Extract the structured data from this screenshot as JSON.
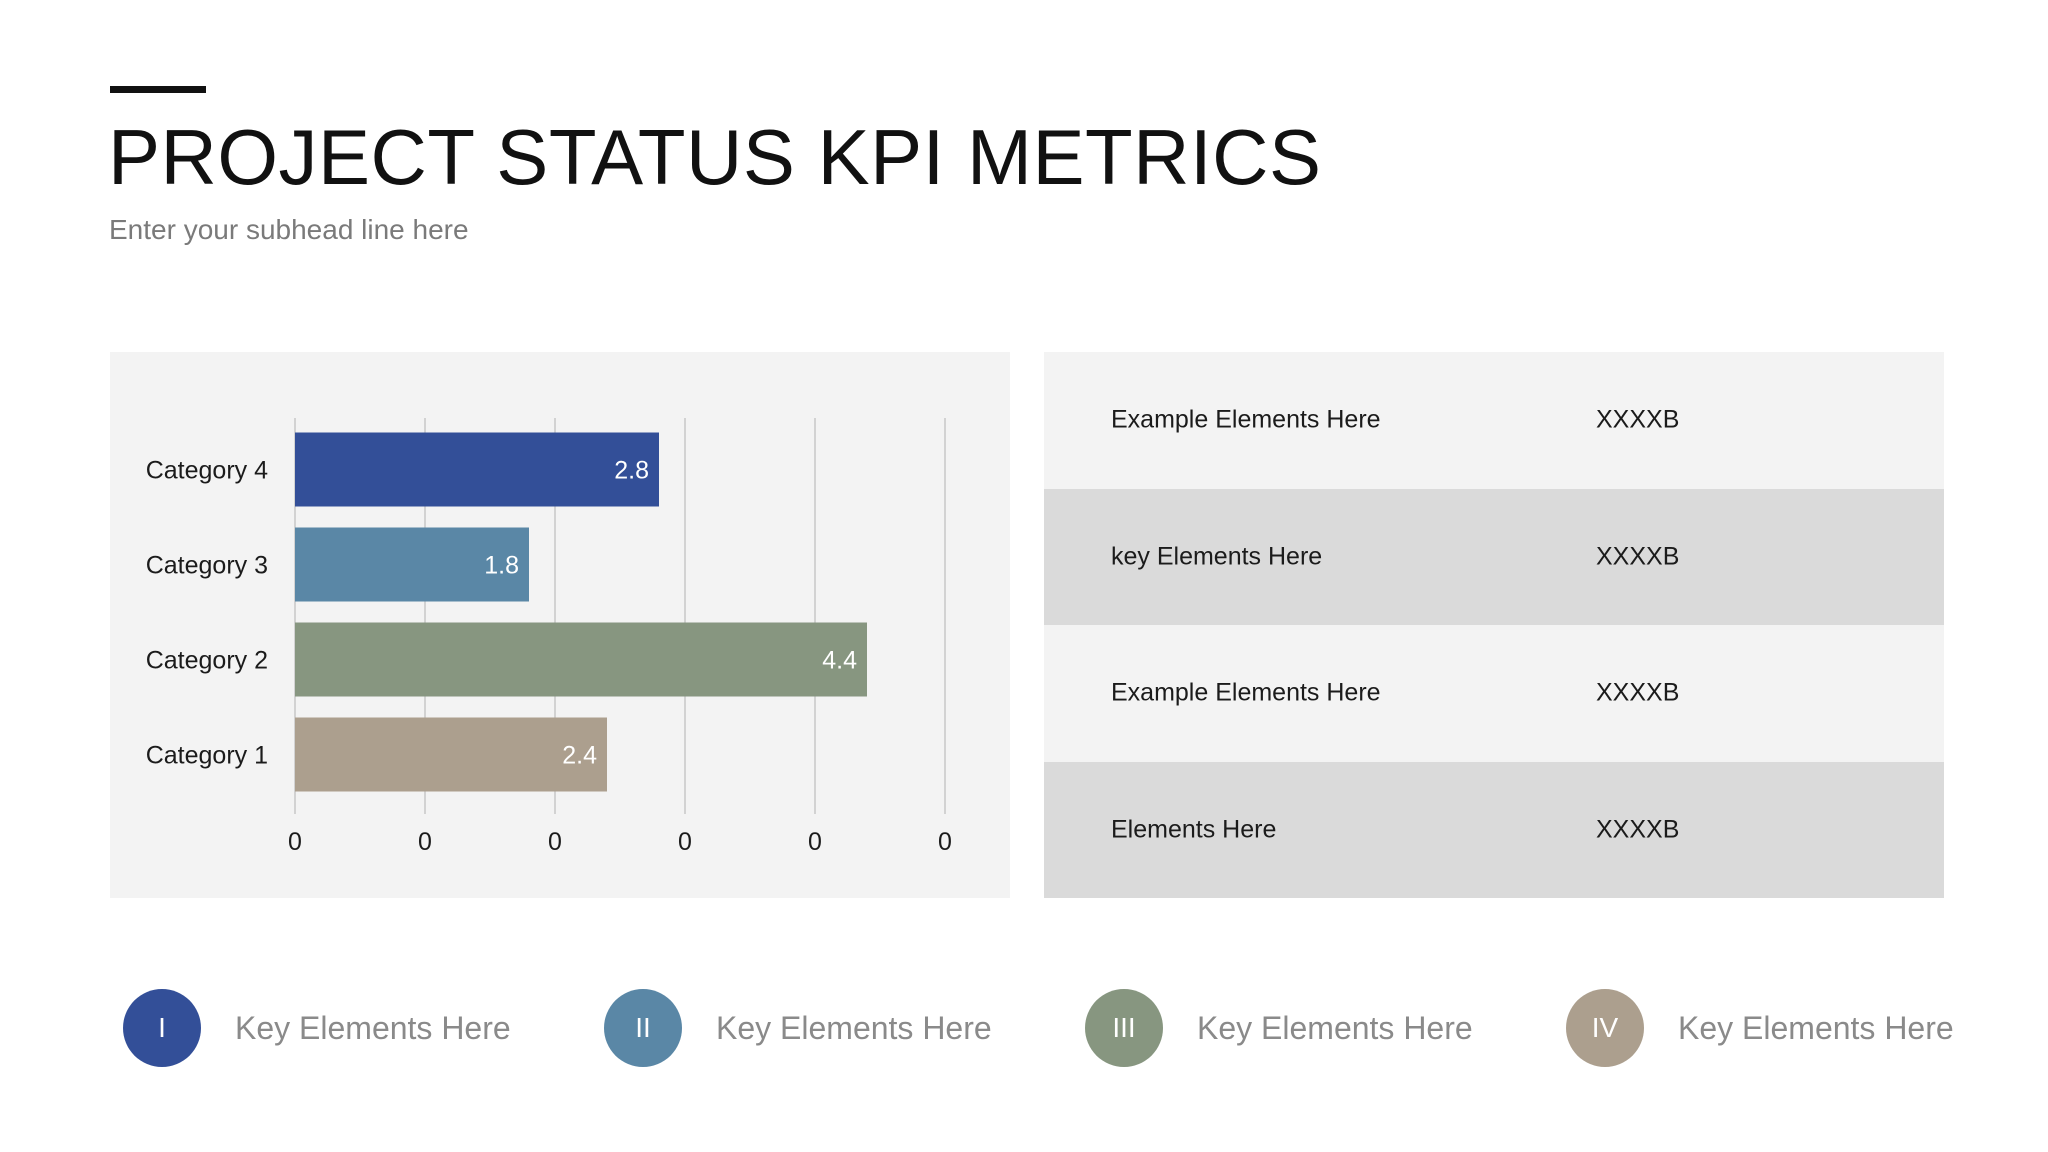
{
  "header": {
    "title": "PROJECT STATUS KPI METRICS",
    "subtitle": "Enter your subhead line here"
  },
  "chart_data": {
    "type": "bar",
    "orientation": "horizontal",
    "categories": [
      "Category 4",
      "Category 3",
      "Category 2",
      "Category 1"
    ],
    "values": [
      2.8,
      1.8,
      4.4,
      2.4
    ],
    "data_labels": [
      "2.8",
      "1.8",
      "4.4",
      "2.4"
    ],
    "colors": [
      "#334f98",
      "#5a87a6",
      "#879680",
      "#ac9f8e"
    ],
    "x_tick_labels": [
      "0",
      "0",
      "0",
      "0",
      "0",
      "0"
    ],
    "xlim": [
      0,
      5
    ],
    "grid": true,
    "title": "",
    "xlabel": "",
    "ylabel": ""
  },
  "table": {
    "rows": [
      {
        "label": "Example Elements Here",
        "value": "XXXXB",
        "bg": "#f3f3f3"
      },
      {
        "label": "key Elements Here",
        "value": "XXXXB",
        "bg": "#dadada"
      },
      {
        "label": "Example Elements Here",
        "value": "XXXXB",
        "bg": "#f3f3f3"
      },
      {
        "label": "Elements Here",
        "value": "XXXXB",
        "bg": "#dadada"
      }
    ]
  },
  "keys": [
    {
      "numeral": "I",
      "label": "Key Elements Here",
      "color": "#334f98"
    },
    {
      "numeral": "II",
      "label": "Key Elements Here",
      "color": "#5a87a6"
    },
    {
      "numeral": "III",
      "label": "Key Elements Here",
      "color": "#879680"
    },
    {
      "numeral": "IV",
      "label": "Key Elements Here",
      "color": "#ac9f8e"
    }
  ]
}
